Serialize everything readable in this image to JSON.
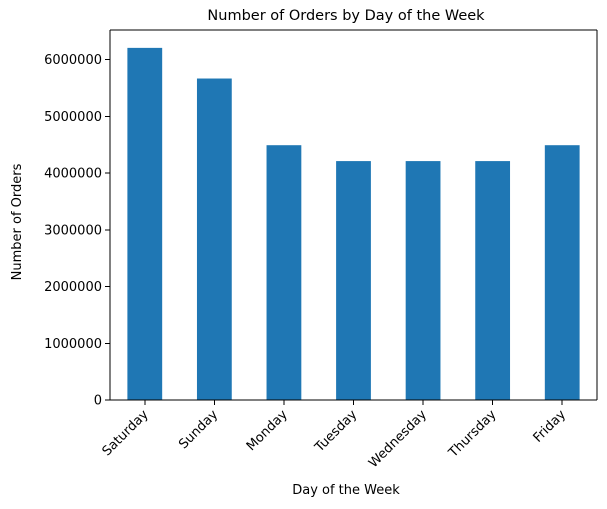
{
  "chart_data": {
    "type": "bar",
    "title": "Number of Orders by Day of the Week",
    "xlabel": "Day of the Week",
    "ylabel": "Number of Orders",
    "categories": [
      "Saturday",
      "Sunday",
      "Monday",
      "Tuesday",
      "Wednesday",
      "Thursday",
      "Friday"
    ],
    "values": [
      6205000,
      5665000,
      4490000,
      4210000,
      4210000,
      4210000,
      4490000
    ],
    "ylim": [
      0,
      6520000
    ],
    "yticks": [
      0,
      1000000,
      2000000,
      3000000,
      4000000,
      5000000,
      6000000
    ],
    "ytick_labels": [
      "0",
      "1000000",
      "2000000",
      "3000000",
      "4000000",
      "5000000",
      "6000000"
    ],
    "grid": false,
    "legend": "none",
    "bar_color": "#1f77b4"
  }
}
